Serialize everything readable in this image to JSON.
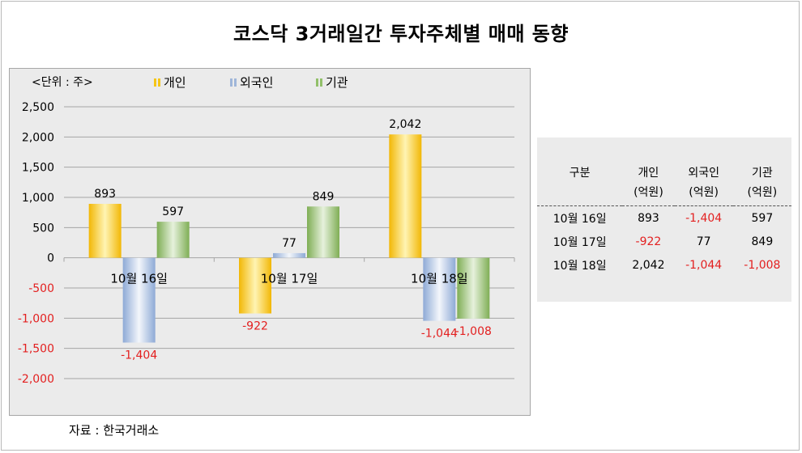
{
  "title": "코스닥 3거래일간 투자주체별 매매 동향",
  "unit_label": "<단위 : 주>",
  "source": "자료 : 한국거래소",
  "colors": {
    "individual": "#f5c518",
    "foreign": "#9fb6d9",
    "institution": "#92c06a",
    "negative_text": "#e32020"
  },
  "chart_data": {
    "type": "bar",
    "categories": [
      "10월 16일",
      "10월 17일",
      "10월 18일"
    ],
    "series": [
      {
        "name": "개인",
        "values": [
          893,
          -922,
          2042
        ]
      },
      {
        "name": "외국인",
        "values": [
          -1404,
          77,
          -1044
        ]
      },
      {
        "name": "기관",
        "values": [
          597,
          849,
          -1008
        ]
      }
    ],
    "ylim": [
      -2000,
      2500
    ],
    "y_ticks": [
      "2,500",
      "2,000",
      "1,500",
      "1,000",
      "500",
      "0",
      "-500",
      "-1,000",
      "-1,500",
      "-2,000"
    ],
    "data_labels": [
      [
        "893",
        "-1,404",
        "597"
      ],
      [
        "-922",
        "77",
        "849"
      ],
      [
        "2,042",
        "-1,044",
        "-1,008"
      ]
    ],
    "grid": true,
    "legend": "top"
  },
  "table": {
    "headers": [
      {
        "line1": "구분",
        "line2": ""
      },
      {
        "line1": "개인",
        "line2": "(억원)"
      },
      {
        "line1": "외국인",
        "line2": "(억원)"
      },
      {
        "line1": "기관",
        "line2": "(억원)"
      }
    ],
    "rows": [
      [
        "10월  16일",
        "893",
        "-1,404",
        "597"
      ],
      [
        "10월  17일",
        "-922",
        "77",
        "849"
      ],
      [
        "10월  18일",
        "2,042",
        "-1,044",
        "-1,008"
      ]
    ]
  }
}
